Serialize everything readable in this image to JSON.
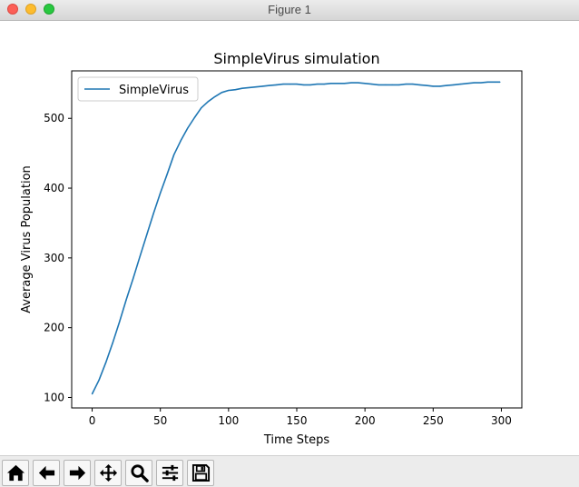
{
  "window": {
    "title": "Figure 1"
  },
  "toolbar": {
    "buttons": [
      {
        "icon": "home-icon"
      },
      {
        "icon": "back-arrow-icon"
      },
      {
        "icon": "forward-arrow-icon"
      },
      {
        "icon": "pan-move-icon"
      },
      {
        "icon": "zoom-magnifier-icon"
      },
      {
        "icon": "configure-subplots-icon"
      },
      {
        "icon": "save-icon"
      }
    ]
  },
  "colors": {
    "line": "#1f77b4",
    "axes": "#000000"
  },
  "chart_data": {
    "type": "line",
    "title": "SimpleVirus simulation",
    "xlabel": "Time Steps",
    "ylabel": "Average Virus Population",
    "xlim": [
      -15,
      315
    ],
    "ylim": [
      85,
      568
    ],
    "xticks": [
      0,
      50,
      100,
      150,
      200,
      250,
      300
    ],
    "yticks": [
      100,
      200,
      300,
      400,
      500
    ],
    "grid": false,
    "legend": "top-left",
    "series": [
      {
        "name": "SimpleVirus",
        "x": [
          0,
          5,
          10,
          15,
          20,
          25,
          30,
          35,
          40,
          45,
          50,
          55,
          60,
          65,
          70,
          75,
          80,
          85,
          90,
          95,
          100,
          105,
          110,
          115,
          120,
          125,
          130,
          135,
          140,
          145,
          150,
          155,
          160,
          165,
          170,
          175,
          180,
          185,
          190,
          195,
          200,
          205,
          210,
          215,
          220,
          225,
          230,
          235,
          240,
          245,
          250,
          255,
          260,
          265,
          270,
          275,
          280,
          285,
          290,
          295,
          299
        ],
        "values": [
          105,
          125,
          150,
          178,
          208,
          240,
          270,
          302,
          333,
          364,
          393,
          420,
          448,
          468,
          486,
          501,
          515,
          524,
          531,
          537,
          540,
          541,
          543,
          544,
          545,
          546,
          547,
          548,
          549,
          549,
          549,
          548,
          548,
          549,
          549,
          550,
          550,
          550,
          551,
          551,
          550,
          549,
          548,
          548,
          548,
          548,
          549,
          549,
          548,
          547,
          546,
          546,
          547,
          548,
          549,
          550,
          551,
          551,
          552,
          552,
          552
        ]
      }
    ]
  }
}
